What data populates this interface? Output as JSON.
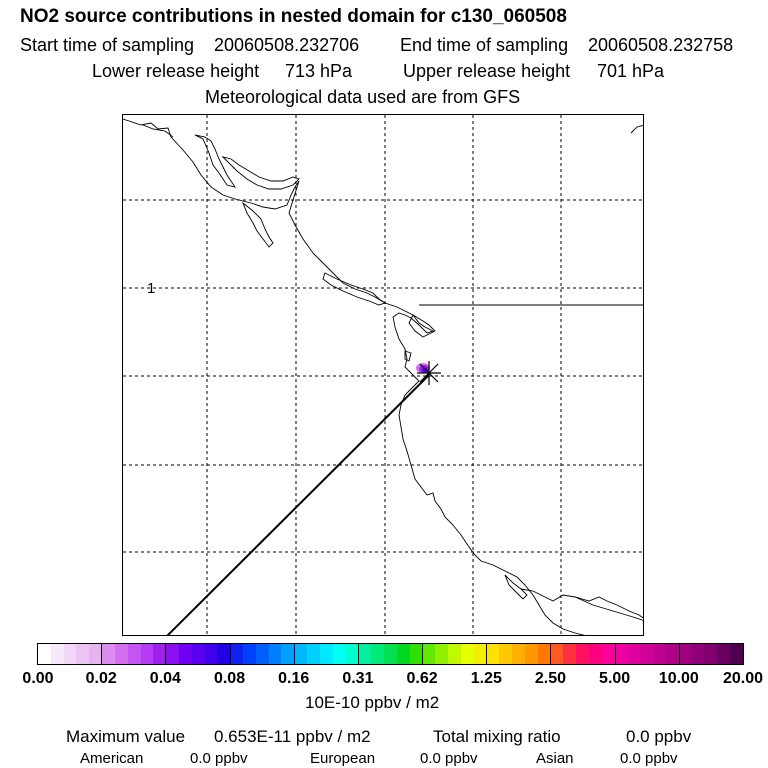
{
  "title": "NO2 source contributions in nested domain for c130_060508",
  "header": {
    "start_label": "Start time of sampling",
    "start_value": "20060508.232706",
    "end_label": "End time of sampling",
    "end_value": "20060508.232758",
    "lower_label": "Lower release height",
    "lower_value": "713 hPa",
    "upper_label": "Upper release height",
    "upper_value": "701 hPa",
    "met_line": "Meteorological data used are from GFS"
  },
  "map": {
    "contour_label": "1",
    "receptor_marker": "x-star",
    "plume_color": "#8800ee"
  },
  "colorbar": {
    "tick_labels": [
      "0.00",
      "0.02",
      "0.04",
      "0.08",
      "0.16",
      "0.31",
      "0.62",
      "1.25",
      "2.50",
      "5.00",
      "10.00",
      "20.00"
    ],
    "colors": [
      "#ffffff",
      "#f8e8fb",
      "#f2d6f7",
      "#ecc4f3",
      "#e6b3ef",
      "#dd8cf0",
      "#d470f0",
      "#c455f2",
      "#b43cf5",
      "#a020f0",
      "#8a10f2",
      "#6f00f4",
      "#5a00f0",
      "#4000ec",
      "#2000e4",
      "#1020f0",
      "#0040ff",
      "#0060ff",
      "#0080ff",
      "#00a0ff",
      "#00b8ff",
      "#00d0ff",
      "#00e8ff",
      "#00fff0",
      "#00ffd0",
      "#00f0a0",
      "#00e878",
      "#00e050",
      "#00d820",
      "#30e000",
      "#60e800",
      "#90f000",
      "#c0f800",
      "#e8ff00",
      "#f0f000",
      "#ffe000",
      "#ffc800",
      "#ffb000",
      "#ff9800",
      "#ff7800",
      "#ff5820",
      "#ff3040",
      "#ff1060",
      "#ff0080",
      "#ff0098",
      "#f000a0",
      "#e000a0",
      "#d00098",
      "#c00090",
      "#b00088",
      "#a00080",
      "#900078",
      "#800070",
      "#680060",
      "#500050"
    ],
    "unit": "10E-10 ppbv / m2"
  },
  "stats": {
    "max_label": "Maximum value",
    "max_value": "0.653E-11 ppbv / m2",
    "total_label": "Total mixing ratio",
    "total_value": "0.0 ppbv",
    "american_label": "American",
    "american_value": "0.0 ppbv",
    "european_label": "European",
    "european_value": "0.0 ppbv",
    "asian_label": "Asian",
    "asian_value": "0.0 ppbv"
  }
}
